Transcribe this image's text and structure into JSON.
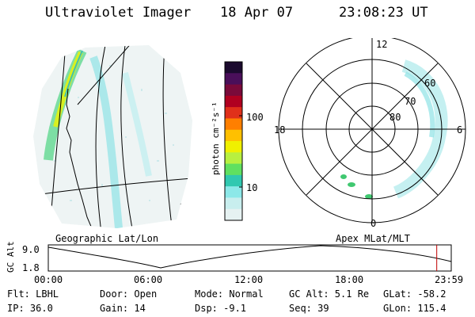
{
  "header": {
    "instrument": "Ultraviolet Imager",
    "date": "18 Apr 07",
    "time": "23:08:23 UT"
  },
  "colorbar": {
    "label": "photon cm⁻²s⁻¹",
    "tick_100": "100",
    "tick_10": "10",
    "colors": [
      "#1b0a2e",
      "#4a0f5a",
      "#7a0a3a",
      "#b00020",
      "#e0301a",
      "#ff7f00",
      "#ffc000",
      "#f0f000",
      "#b8f040",
      "#60e060",
      "#30c8b0",
      "#8ce8e8",
      "#c8eeee",
      "#e6f2f2"
    ]
  },
  "polar": {
    "label_top": "12",
    "label_bottom": "0",
    "label_left": "18",
    "label_right": "6",
    "lat_60": "60",
    "lat_70": "70",
    "lat_80": "80"
  },
  "map_labels": {
    "left": "Geographic Lat/Lon",
    "right": "Apex MLat/MLT"
  },
  "altitude_plot": {
    "axis_label": "GC Alt",
    "y_max": "9.0",
    "y_min": "1.8",
    "x_ticks": [
      "00:00",
      "06:00",
      "12:00",
      "18:00",
      "23:59"
    ],
    "marker_fraction": 0.964
  },
  "info": {
    "flt": "Flt: LBHL",
    "ip": "IP: 36.0",
    "door": "Door: Open",
    "gain": "Gain: 14",
    "mode": "Mode: Normal",
    "dsp": "Dsp:   -9.1",
    "gcalt": "GC Alt: 5.1 Re",
    "seq": "Seq: 39",
    "glat": "GLat: -58.2",
    "glon": "GLon: 115.4"
  }
}
